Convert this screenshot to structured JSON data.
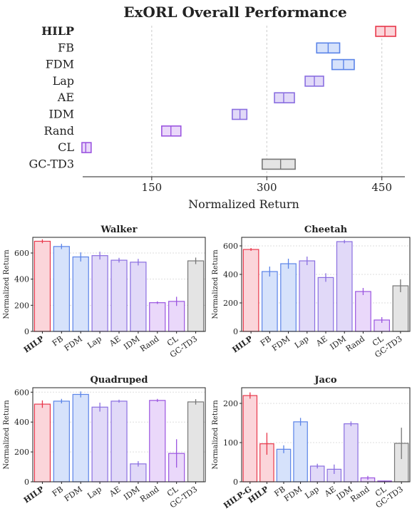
{
  "chart_data": [
    {
      "type": "bar",
      "orientation": "horizontal",
      "title": "ExORL Overall Performance",
      "xlabel": "Normalized Return",
      "xlim": [
        60,
        480
      ],
      "xticks": [
        150,
        300,
        450
      ],
      "grid": "vertical dashed",
      "categories": [
        "HILP",
        "FB",
        "FDM",
        "Lap",
        "AE",
        "IDM",
        "Rand",
        "CL",
        "GC-TD3"
      ],
      "highlight": "HILP",
      "low": [
        442,
        365,
        385,
        350,
        310,
        255,
        163,
        59,
        294
      ],
      "median": [
        454,
        380,
        400,
        362,
        322,
        265,
        175,
        64,
        318
      ],
      "high": [
        468,
        395,
        414,
        374,
        336,
        274,
        188,
        71,
        337
      ],
      "colors": [
        "#e8374a",
        "#5b84e8",
        "#5b84e8",
        "#8a6ee0",
        "#8a6ee0",
        "#8a6ee0",
        "#9b55e0",
        "#9b55e0",
        "#777777"
      ],
      "fills": [
        "#fbd5da",
        "#d6e2fb",
        "#d6e2fb",
        "#e1d9f8",
        "#e1d9f8",
        "#e1d9f8",
        "#ead8fa",
        "#ead8fa",
        "#e4e4e4"
      ]
    },
    {
      "type": "bar",
      "title": "Walker",
      "ylabel": "Normalized Return",
      "ylim": [
        0,
        720
      ],
      "yticks": [
        0,
        200,
        400,
        600
      ],
      "categories": [
        "HILP",
        "FB",
        "FDM",
        "Lap",
        "AE",
        "IDM",
        "Rand",
        "CL",
        "GC-TD3"
      ],
      "values": [
        690,
        650,
        570,
        580,
        545,
        530,
        220,
        230,
        540
      ],
      "errors": [
        15,
        20,
        35,
        30,
        18,
        25,
        10,
        35,
        25
      ]
    },
    {
      "type": "bar",
      "title": "Cheetah",
      "ylabel": "Normalized Return",
      "ylim": [
        0,
        660
      ],
      "yticks": [
        0,
        200,
        400,
        600
      ],
      "categories": [
        "HILP",
        "FB",
        "FDM",
        "Lap",
        "AE",
        "IDM",
        "Rand",
        "CL",
        "GC-TD3"
      ],
      "values": [
        575,
        420,
        475,
        495,
        378,
        630,
        280,
        80,
        320
      ],
      "errors": [
        10,
        35,
        35,
        30,
        30,
        12,
        25,
        20,
        45
      ]
    },
    {
      "type": "bar",
      "title": "Quadruped",
      "ylabel": "Normalized Return",
      "ylim": [
        0,
        630
      ],
      "yticks": [
        0,
        200,
        400,
        600
      ],
      "categories": [
        "HILP",
        "FB",
        "FDM",
        "Lap",
        "AE",
        "IDM",
        "Rand",
        "CL",
        "GC-TD3"
      ],
      "values": [
        520,
        540,
        585,
        500,
        540,
        120,
        545,
        190,
        535
      ],
      "errors": [
        25,
        15,
        20,
        30,
        10,
        18,
        10,
        95,
        18
      ]
    },
    {
      "type": "bar",
      "title": "Jaco",
      "ylabel": "Normalized Return",
      "ylim": [
        0,
        240
      ],
      "yticks": [
        0,
        100,
        200
      ],
      "categories": [
        "HILP-G",
        "HILP",
        "FB",
        "FDM",
        "Lap",
        "AE",
        "IDM",
        "Rand",
        "CL",
        "GC-TD3"
      ],
      "values": [
        220,
        97,
        83,
        153,
        40,
        32,
        148,
        10,
        2,
        98
      ],
      "errors": [
        8,
        28,
        10,
        10,
        6,
        12,
        6,
        5,
        1,
        40
      ]
    }
  ],
  "colors": {
    "hilp": "#e8374a",
    "hilp_fill": "#fbd5da",
    "fb": "#5b84e8",
    "fb_fill": "#d6e2fb",
    "lap": "#8a6ee0",
    "lap_fill": "#e1d9f8",
    "rand": "#9b55e0",
    "rand_fill": "#ead8fa",
    "gc": "#777777",
    "gc_fill": "#e4e4e4"
  }
}
